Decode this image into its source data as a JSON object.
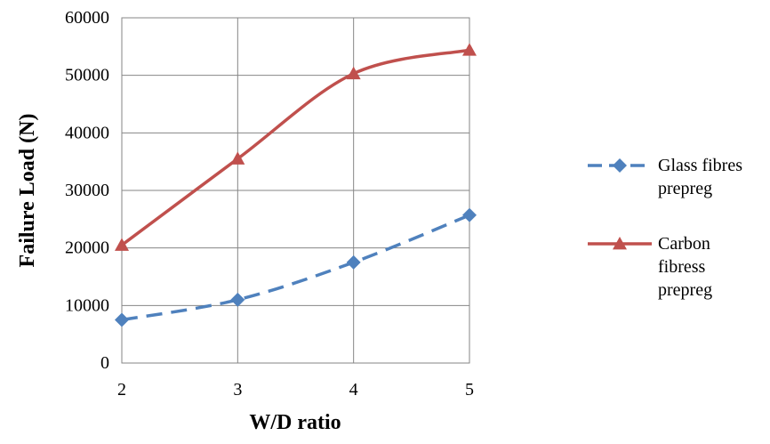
{
  "chart_data": {
    "type": "line",
    "xlabel": "W/D ratio",
    "ylabel": "Failure Load (N)",
    "x": [
      2,
      3,
      4,
      5
    ],
    "xlim": [
      2,
      5
    ],
    "ylim": [
      0,
      60000
    ],
    "y_ticks": [
      0,
      10000,
      20000,
      30000,
      40000,
      50000,
      60000
    ],
    "x_ticks": [
      2,
      3,
      4,
      5
    ],
    "grid": true,
    "legend_position": "right",
    "series": [
      {
        "name_lines": [
          "Glass fibres",
          "prepreg"
        ],
        "values": [
          7500,
          11000,
          17500,
          25700
        ],
        "color": "#4F81BD",
        "line_style": "dashed",
        "marker": "diamond"
      },
      {
        "name_lines": [
          "Carbon",
          "fibress",
          "prepreg"
        ],
        "values": [
          20500,
          35500,
          50300,
          54400
        ],
        "color": "#C0504D",
        "line_style": "solid",
        "marker": "triangle"
      }
    ]
  }
}
